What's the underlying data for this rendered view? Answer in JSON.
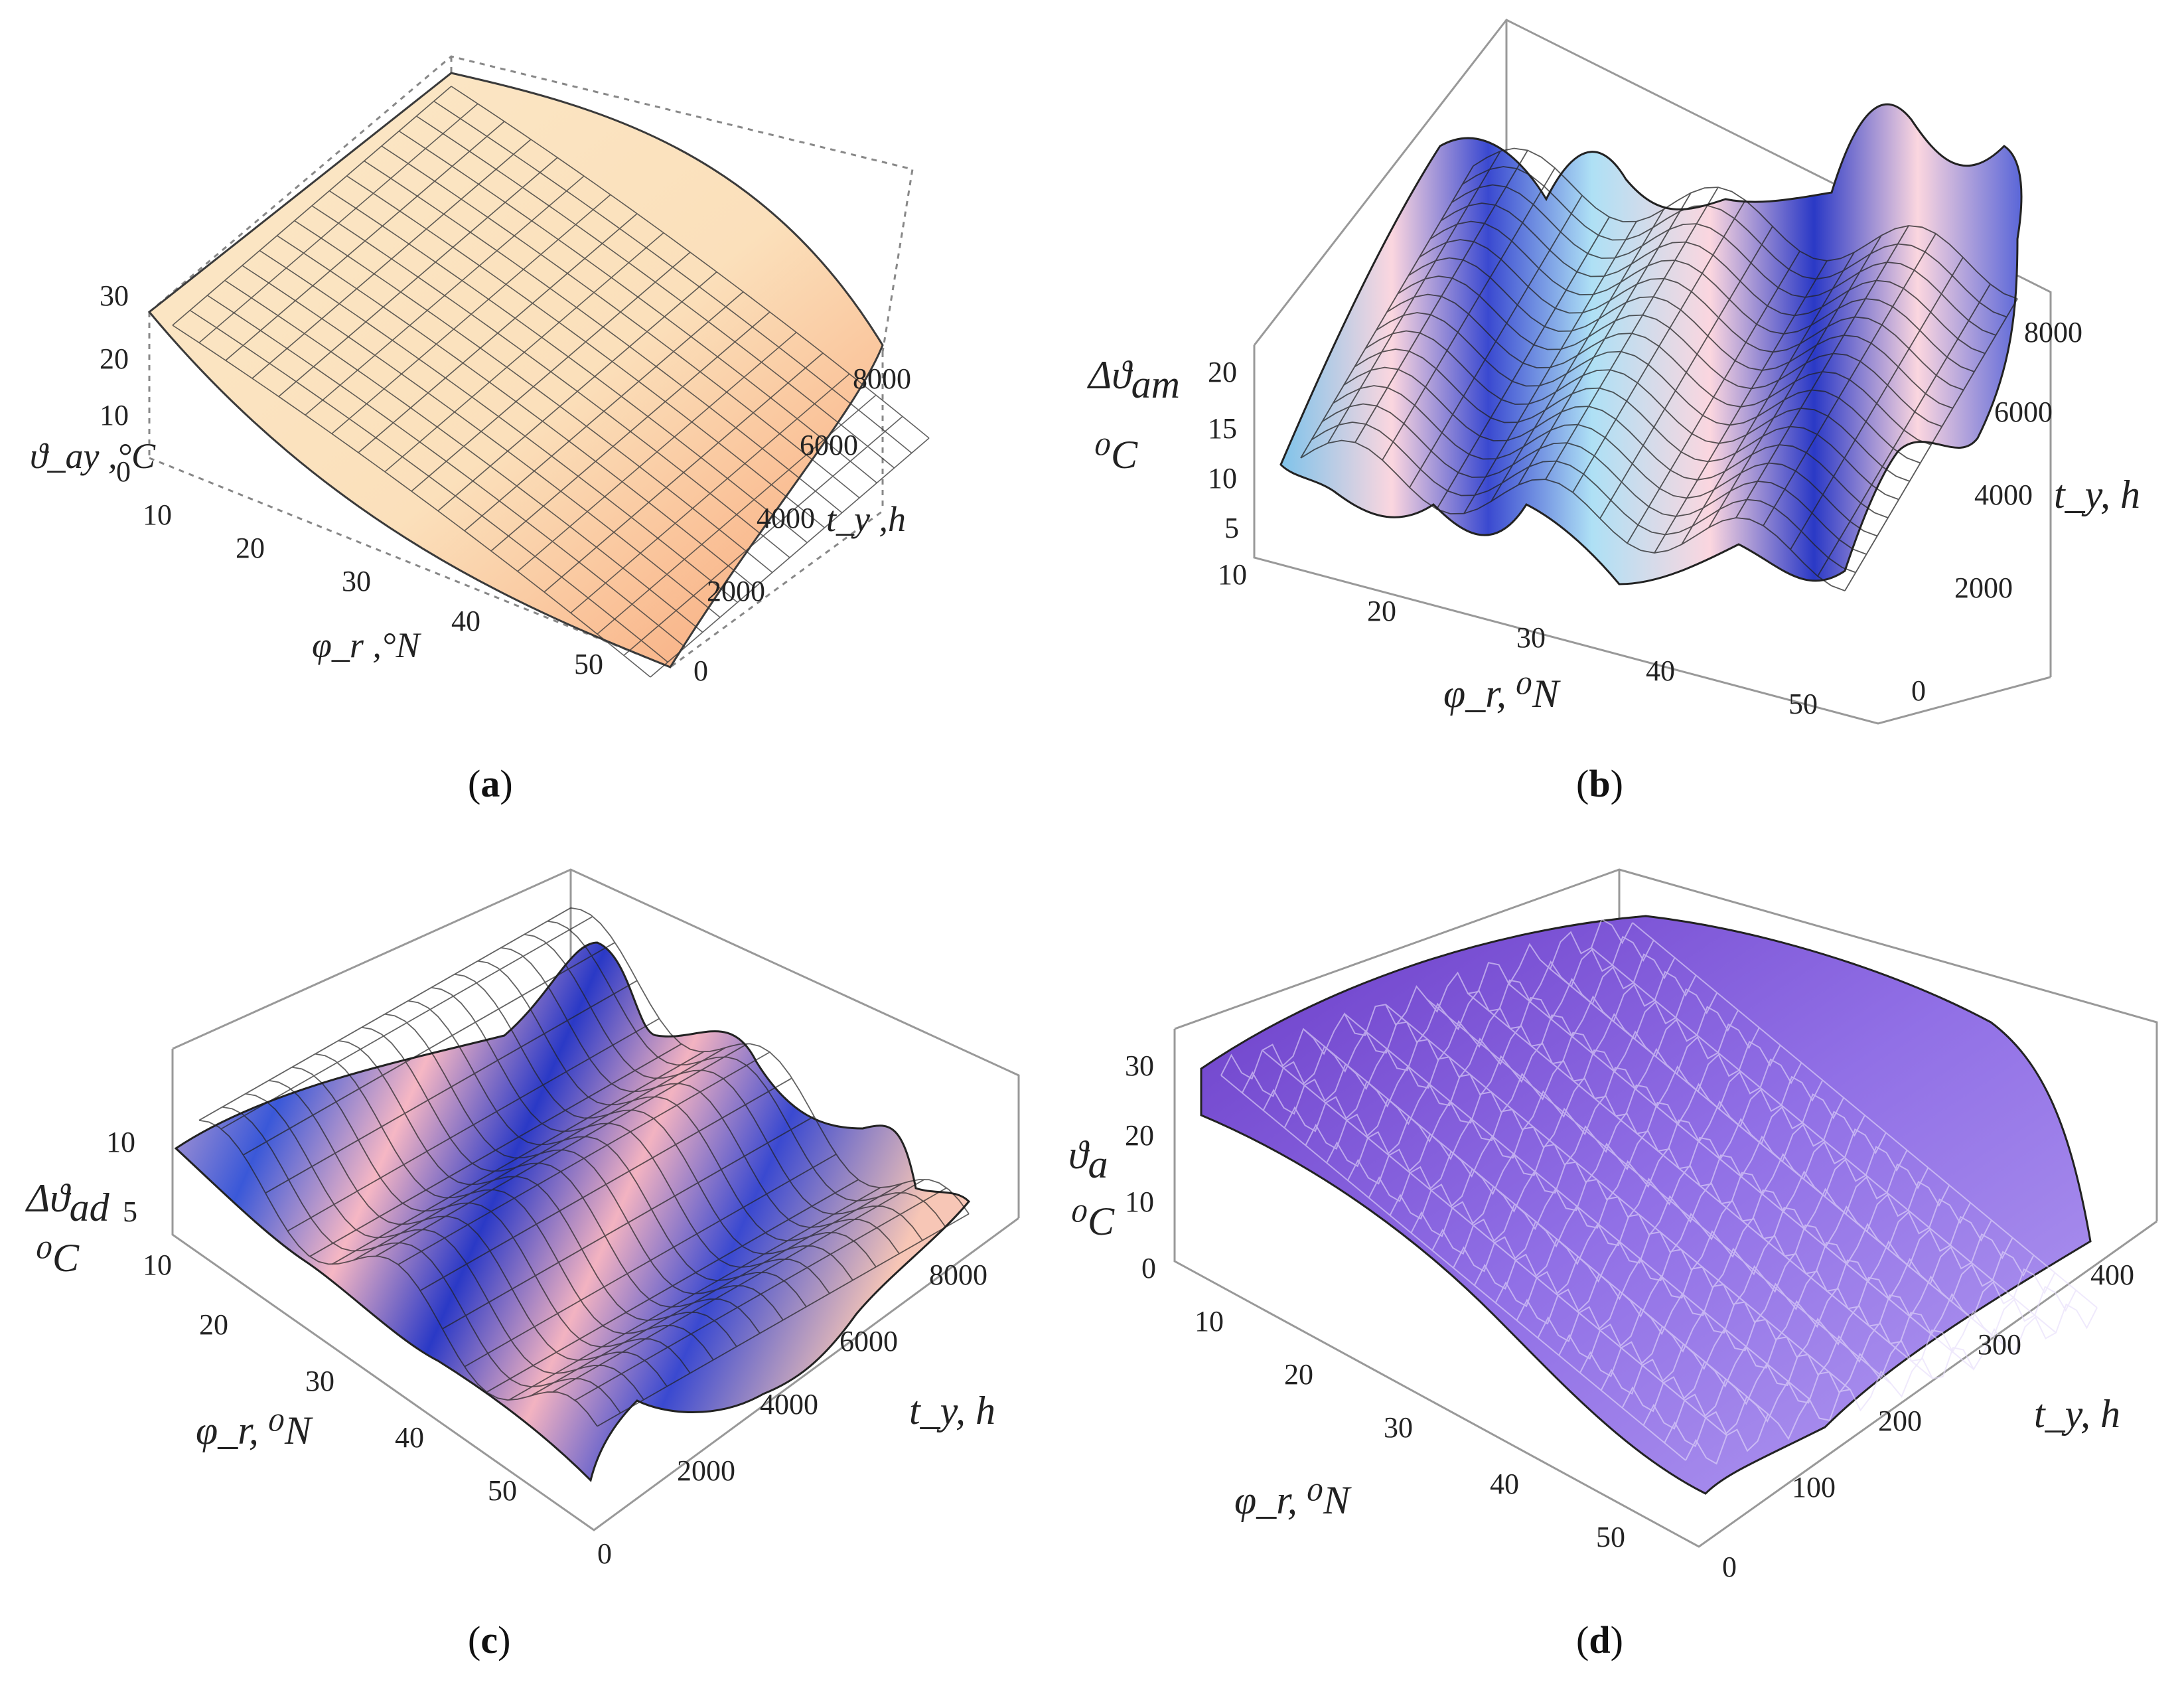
{
  "figure": {
    "captions": [
      {
        "open": "(",
        "letter": "a",
        "close": ")"
      },
      {
        "open": "(",
        "letter": "b",
        "close": ")"
      },
      {
        "open": "(",
        "letter": "c",
        "close": ")"
      },
      {
        "open": "(",
        "letter": "d",
        "close": ")"
      }
    ]
  },
  "chart_data": [
    {
      "type": "surface3d",
      "panel": "a",
      "zlabel": "ϑ_ay ,°C",
      "xlabel": "φ_r ,°N",
      "ylabel": "t_y ,h",
      "z_ticks": [
        "30",
        "20",
        "10",
        "0"
      ],
      "x_ticks": [
        "10",
        "20",
        "30",
        "40",
        "50"
      ],
      "y_ticks": [
        "0",
        "2000",
        "4000",
        "6000",
        "8000"
      ],
      "xlim": [
        10,
        55
      ],
      "ylim": [
        0,
        8760
      ],
      "zlim": [
        0,
        30
      ],
      "colors": {
        "low": "#f9a77a",
        "high": "#fbe8c8",
        "mesh": "#3a3a3a"
      },
      "description_note": "smooth annual-average air temperature decreasing with latitude"
    },
    {
      "type": "surface3d",
      "panel": "b",
      "zlabel_main": "Δϑ",
      "zlabel_sub": "am",
      "zunit": "⁰C",
      "xlabel": "φ_r,  ⁰N",
      "ylabel": "t_y, h",
      "z_ticks": [
        "20",
        "15",
        "10",
        "5"
      ],
      "x_ticks": [
        "10",
        "20",
        "30",
        "40",
        "50"
      ],
      "y_ticks": [
        "0",
        "2000",
        "4000",
        "6000",
        "8000"
      ],
      "xlim": [
        10,
        55
      ],
      "ylim": [
        0,
        8760
      ],
      "zlim": [
        5,
        22
      ],
      "colors": {
        "low": "#2a39c6",
        "mid": "#7fc3ea",
        "high": "#fbd6df",
        "mesh": "#222"
      }
    },
    {
      "type": "surface3d",
      "panel": "c",
      "zlabel_main": "Δϑ",
      "zlabel_sub": "ad",
      "zunit": "⁰C",
      "xlabel": "φ_r,  ⁰N",
      "ylabel": "t_y, h",
      "z_ticks": [
        "10",
        "5"
      ],
      "x_ticks": [
        "10",
        "20",
        "30",
        "40",
        "50"
      ],
      "y_ticks": [
        "0",
        "2000",
        "4000",
        "6000",
        "8000"
      ],
      "xlim": [
        10,
        55
      ],
      "ylim": [
        0,
        8760
      ],
      "zlim": [
        2,
        12
      ],
      "colors": {
        "low": "#2a39c6",
        "mid": "#9fd2f0",
        "high": "#f6b7c4",
        "mesh": "#222"
      }
    },
    {
      "type": "surface3d",
      "panel": "d",
      "zlabel_main": "ϑ",
      "zlabel_sub": "a",
      "zunit": "⁰C",
      "xlabel": "φ_r,  ⁰N",
      "ylabel": "t_y, h",
      "z_ticks": [
        "30",
        "20",
        "10",
        "0"
      ],
      "x_ticks": [
        "10",
        "20",
        "30",
        "40",
        "50"
      ],
      "y_ticks": [
        "0",
        "100",
        "200",
        "300",
        "400"
      ],
      "xlim": [
        10,
        55
      ],
      "ylim": [
        0,
        400
      ],
      "zlim": [
        0,
        35
      ],
      "colors": {
        "low": "#5a2fb8",
        "mid": "#9170e6",
        "high": "#c9b4f4",
        "mesh": "#222"
      }
    }
  ]
}
